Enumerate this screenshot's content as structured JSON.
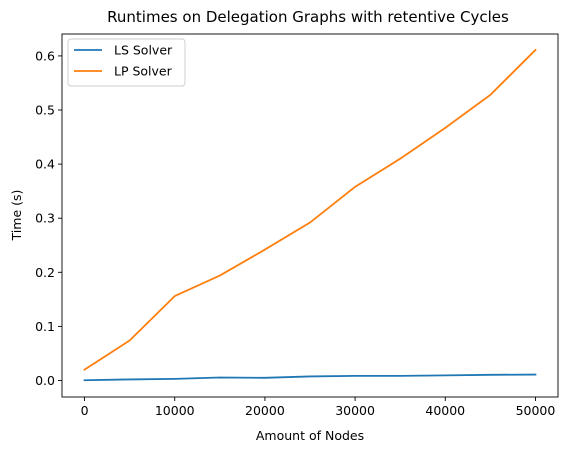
{
  "chart_data": {
    "type": "line",
    "title": "Runtimes on Delegation Graphs with retentive Cycles",
    "xlabel": "Amount of Nodes",
    "ylabel": "Time (s)",
    "x": [
      0,
      5000,
      10000,
      15000,
      20000,
      25000,
      30000,
      35000,
      40000,
      45000,
      50000
    ],
    "xlim": [
      -2500,
      52500
    ],
    "ylim": [
      -0.0305,
      0.6405
    ],
    "x_ticks": [
      0,
      10000,
      20000,
      30000,
      40000,
      50000
    ],
    "x_tick_labels": [
      "0",
      "10000",
      "20000",
      "30000",
      "40000",
      "50000"
    ],
    "y_ticks": [
      0.0,
      0.1,
      0.2,
      0.3,
      0.4,
      0.5,
      0.6
    ],
    "y_tick_labels": [
      "0.0",
      "0.1",
      "0.2",
      "0.3",
      "0.4",
      "0.5",
      "0.6"
    ],
    "grid": false,
    "legend_position": "top-left",
    "series": [
      {
        "name": "LS Solver",
        "color": "#1f77b4",
        "values": [
          0.0005,
          0.002,
          0.003,
          0.0055,
          0.005,
          0.0075,
          0.0085,
          0.0085,
          0.0095,
          0.0105,
          0.011
        ]
      },
      {
        "name": "LP Solver",
        "color": "#ff7f0e",
        "values": [
          0.02,
          0.074,
          0.156,
          0.194,
          0.242,
          0.292,
          0.358,
          0.41,
          0.467,
          0.528,
          0.611
        ]
      }
    ]
  }
}
